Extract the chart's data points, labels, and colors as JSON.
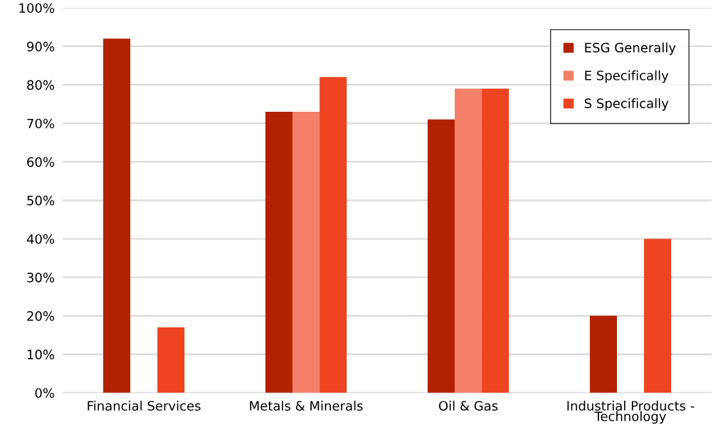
{
  "chart_data": {
    "type": "bar",
    "categories": [
      "Financial Services",
      "Metals & Minerals",
      "Oil & Gas",
      "Industrial Products - Technology"
    ],
    "series": [
      {
        "name": "ESG Generally",
        "color": "#b22200",
        "values": [
          92,
          73,
          71,
          20
        ]
      },
      {
        "name": "E Specifically",
        "color": "#f4806a",
        "values": [
          0,
          73,
          79,
          0
        ]
      },
      {
        "name": "S Specifically",
        "color": "#ee4422",
        "values": [
          17,
          82,
          79,
          40
        ]
      }
    ],
    "ylim": [
      0,
      100
    ],
    "yticks": [
      {
        "value": 0,
        "label": "0%"
      },
      {
        "value": 10,
        "label": "10%"
      },
      {
        "value": 20,
        "label": "20%"
      },
      {
        "value": 30,
        "label": "30%"
      },
      {
        "value": 40,
        "label": "40%"
      },
      {
        "value": 50,
        "label": "50%"
      },
      {
        "value": 60,
        "label": "60%"
      },
      {
        "value": 70,
        "label": "70%"
      },
      {
        "value": 80,
        "label": "80%"
      },
      {
        "value": 90,
        "label": "90%"
      },
      {
        "value": 100,
        "label": "100%"
      }
    ],
    "grid": "y",
    "legend": "top right"
  }
}
